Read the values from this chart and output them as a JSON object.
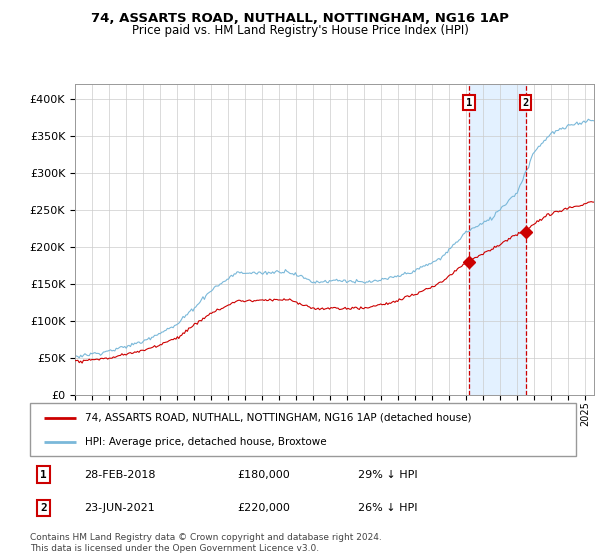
{
  "title1": "74, ASSARTS ROAD, NUTHALL, NOTTINGHAM, NG16 1AP",
  "title2": "Price paid vs. HM Land Registry's House Price Index (HPI)",
  "ylabel_ticks": [
    "£0",
    "£50K",
    "£100K",
    "£150K",
    "£200K",
    "£250K",
    "£300K",
    "£350K",
    "£400K"
  ],
  "ylim": [
    0,
    420000
  ],
  "xlim_start": 1995.0,
  "xlim_end": 2025.5,
  "transaction1": {
    "date_num": 2018.15,
    "price": 180000,
    "label": "1",
    "date_str": "28-FEB-2018",
    "pct": "29% ↓ HPI"
  },
  "transaction2": {
    "date_num": 2021.48,
    "price": 220000,
    "label": "2",
    "date_str": "23-JUN-2021",
    "pct": "26% ↓ HPI"
  },
  "legend_line1": "74, ASSARTS ROAD, NUTHALL, NOTTINGHAM, NG16 1AP (detached house)",
  "legend_line2": "HPI: Average price, detached house, Broxtowe",
  "footnote": "Contains HM Land Registry data © Crown copyright and database right 2024.\nThis data is licensed under the Open Government Licence v3.0.",
  "hpi_color": "#7ab8d9",
  "price_color": "#cc0000",
  "dashed_color": "#cc0000",
  "shade_color": "#ddeeff"
}
